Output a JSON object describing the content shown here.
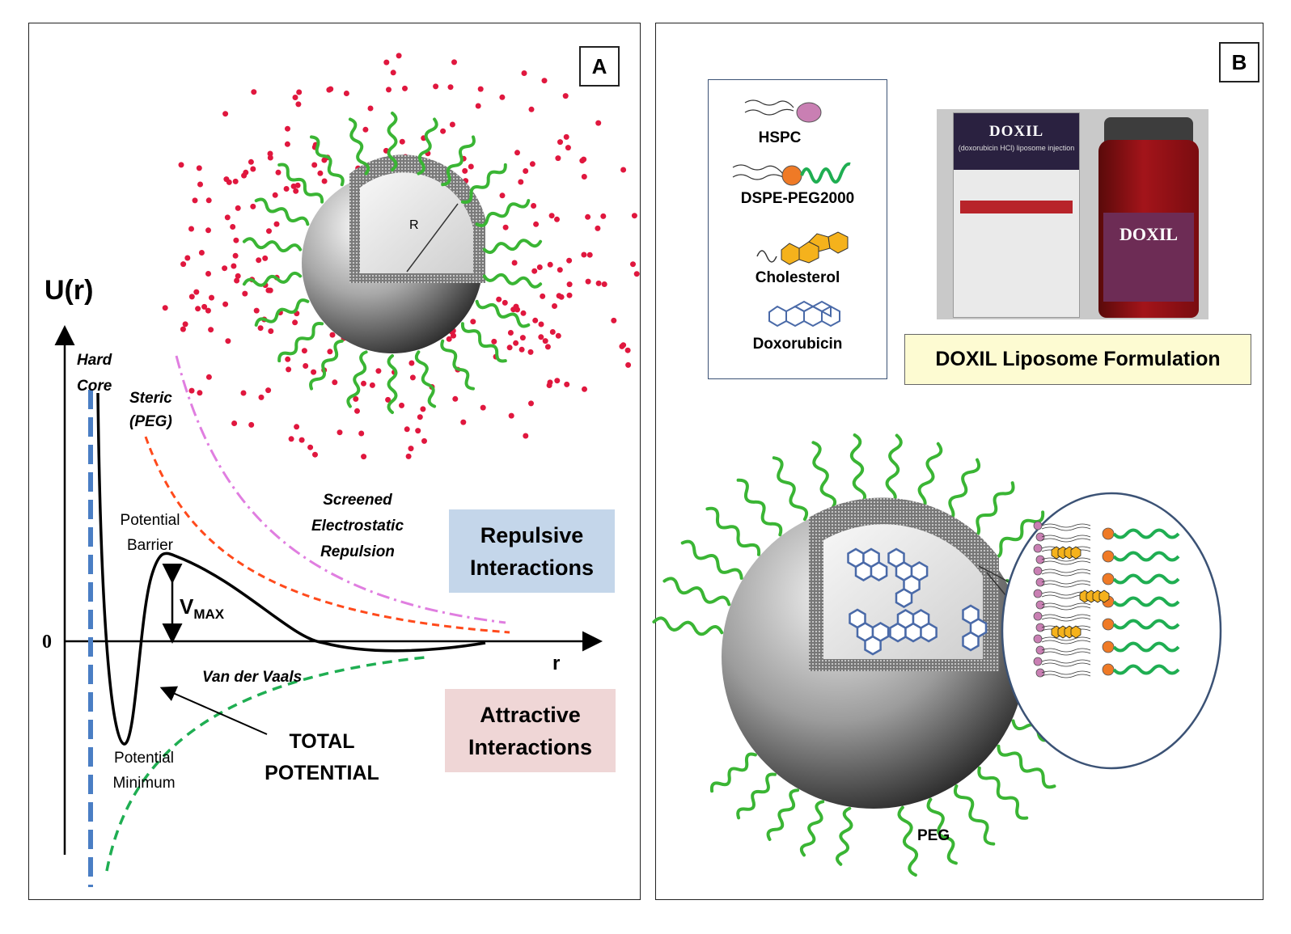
{
  "panel_a": {
    "label": "A",
    "y_axis_label": "U(r)",
    "x_axis_label": "r",
    "zero_label": "0",
    "liposome_radius_label": "R",
    "hard_core_label": [
      "Hard",
      "Core"
    ],
    "steric_label": [
      "Steric",
      "(PEG)"
    ],
    "electrostatic_label": [
      "Screened",
      "Electrostatic",
      "Repulsion"
    ],
    "barrier_label": [
      "Potential",
      "Barrier"
    ],
    "vmax_main": "V",
    "vmax_sub": "MAX",
    "vdw_label": "Van der Vaals",
    "minimum_label": [
      "Potential",
      "Minimum"
    ],
    "total_label": [
      "TOTAL",
      "POTENTIAL"
    ],
    "repulsive_box": [
      "Repulsive",
      "Interactions"
    ],
    "attractive_box": [
      "Attractive",
      "Interactions"
    ],
    "colors": {
      "hard_core_line": "#4a7ec4",
      "steric_curve": "#ff4a1c",
      "electrostatic_curve": "#e07ee0",
      "vdw_curve": "#1fae52",
      "repulsive_box": "#c4d6ea",
      "attractive_box": "#efd6d6",
      "ions": "#e0173e",
      "peg": "#3ab534"
    }
  },
  "panel_b": {
    "label": "B",
    "legend": [
      "HSPC",
      "DSPE-PEG2000",
      "Cholesterol",
      "Doxorubicin"
    ],
    "product_carton_title": "DOXIL",
    "product_carton_sub": "(doxorubicin HCl) liposome injection",
    "product_vial_title": "DOXIL",
    "formulation_title": "DOXIL  Liposome Formulation",
    "peg_label": "PEG",
    "colors": {
      "hspc_head": "#c97fb3",
      "dspe_head": "#ef7a26",
      "cholesterol": "#f5b21c",
      "doxorubicin": "#4a6aa8",
      "formulation_box": "#fdfbd2",
      "zoom_circle": "#3b5275"
    }
  }
}
